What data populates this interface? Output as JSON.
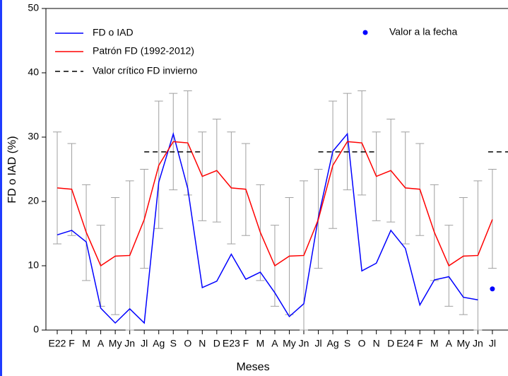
{
  "chart_data": {
    "type": "line",
    "x_label": "Meses",
    "y_label": "FD o IAD (%)",
    "categories": [
      "E22",
      "F",
      "M",
      "A",
      "My",
      "Jn",
      "Jl",
      "Ag",
      "S",
      "O",
      "N",
      "D",
      "E23",
      "F",
      "M",
      "A",
      "My",
      "Jn",
      "Jl",
      "Ag",
      "S",
      "O",
      "N",
      "D",
      "E24",
      "F",
      "M",
      "A",
      "My",
      "Jn",
      "Jl"
    ],
    "ylim": [
      0,
      50
    ],
    "yticks": [
      0,
      10,
      20,
      30,
      40,
      50
    ],
    "series": [
      {
        "name": "FD o IAD",
        "color": "#0000ff",
        "style": "solid",
        "values": [
          14.8,
          15.5,
          13.7,
          3.4,
          1.1,
          3.3,
          1.1,
          23.0,
          30.5,
          22.0,
          6.6,
          7.6,
          11.8,
          7.9,
          9.0,
          5.8,
          2.1,
          4.1,
          17.5,
          27.8,
          30.5,
          9.2,
          10.4,
          15.5,
          12.7,
          3.9,
          7.8,
          8.3,
          5.1,
          4.7,
          null
        ]
      },
      {
        "name": "Patrón FD (1992-2012)",
        "color": "#ff0000",
        "style": "solid",
        "values": [
          22.1,
          21.9,
          15.2,
          10.0,
          11.5,
          11.6,
          17.2,
          25.6,
          29.3,
          29.1,
          23.9,
          24.8,
          22.1,
          21.9,
          15.2,
          10.0,
          11.5,
          11.6,
          17.2,
          25.6,
          29.3,
          29.1,
          23.9,
          24.8,
          22.1,
          21.9,
          15.2,
          10.0,
          11.5,
          11.6,
          17.2
        ],
        "error_upper": [
          30.8,
          29.0,
          22.6,
          16.3,
          20.6,
          23.2,
          25.0,
          35.6,
          36.8,
          37.2,
          30.8,
          32.8,
          30.8,
          29.0,
          22.6,
          16.3,
          20.6,
          23.2,
          25.0,
          35.6,
          36.8,
          37.2,
          30.8,
          32.8,
          30.8,
          29.0,
          22.6,
          16.3,
          20.6,
          23.2,
          25.0
        ],
        "error_lower": [
          13.4,
          14.7,
          7.7,
          3.7,
          2.4,
          0,
          9.6,
          15.8,
          21.8,
          21.0,
          17.0,
          16.8,
          13.4,
          14.7,
          7.7,
          3.7,
          2.4,
          0,
          9.6,
          15.8,
          21.8,
          21.0,
          17.0,
          16.8,
          13.4,
          14.7,
          7.7,
          3.7,
          2.4,
          0,
          9.6
        ],
        "error_color": "#a0a0a0"
      },
      {
        "name": "Valor crítico FD invierno",
        "color": "#000000",
        "style": "dashed",
        "values": [
          null,
          null,
          null,
          null,
          null,
          null,
          27.7,
          27.7,
          27.7,
          27.7,
          27.7,
          null,
          null,
          null,
          null,
          null,
          null,
          null,
          27.7,
          27.7,
          27.7,
          27.7,
          27.7,
          null,
          null,
          null,
          null,
          null,
          null,
          null,
          27.7
        ]
      },
      {
        "name": "Valor a la fecha",
        "color": "#0000ff",
        "style": "marker",
        "values": [
          null,
          null,
          null,
          null,
          null,
          null,
          null,
          null,
          null,
          null,
          null,
          null,
          null,
          null,
          null,
          null,
          null,
          null,
          null,
          null,
          null,
          null,
          null,
          null,
          null,
          null,
          null,
          null,
          null,
          null,
          6.4
        ]
      }
    ]
  }
}
